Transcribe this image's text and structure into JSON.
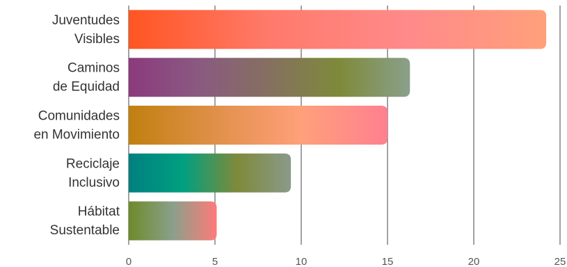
{
  "chart_data": {
    "type": "bar",
    "orientation": "horizontal",
    "categories": [
      [
        "Juventudes",
        "Visibles"
      ],
      [
        "Caminos",
        "de Equidad"
      ],
      [
        "Comunidades",
        "en Movimiento"
      ],
      [
        "Reciclaje",
        "Inclusivo"
      ],
      [
        "Hábitat",
        "Sustentable"
      ]
    ],
    "values": [
      24.2,
      16.3,
      15.0,
      9.4,
      5.1
    ],
    "xlim": [
      0,
      25
    ],
    "xticks": [
      "0",
      "5",
      "10",
      "15",
      "20",
      "25"
    ],
    "xtick_values": [
      0,
      5,
      10,
      15,
      20,
      25
    ],
    "grid": true,
    "title": "",
    "xlabel": "",
    "ylabel": "",
    "bar_gradients": [
      [
        "#ff5522",
        "#ff7a6a",
        "#ff8a8a",
        "#ffa07a"
      ],
      [
        "#8b3a7e",
        "#8a5a80",
        "#857060",
        "#7e8a3a",
        "#8aa08a"
      ],
      [
        "#c08010",
        "#e0904a",
        "#ffa07a",
        "#ff8090"
      ],
      [
        "#008080",
        "#00a080",
        "#7e8a3a",
        "#8a9a8a"
      ],
      [
        "#6e8a2a",
        "#8aa08a",
        "#ff7a7a"
      ]
    ]
  }
}
